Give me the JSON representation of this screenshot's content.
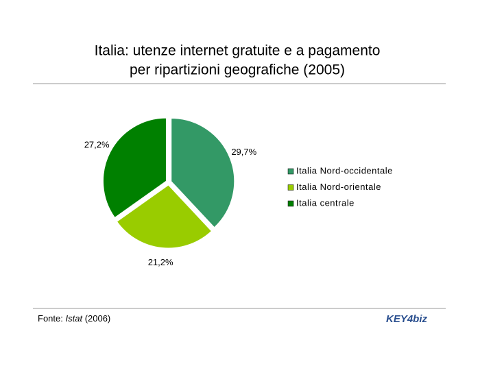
{
  "chart_data": {
    "type": "pie",
    "title": [
      "Italia: utenze internet gratuite e a pagamento",
      "per ripartizioni geografiche (2005)"
    ],
    "categories": [
      "Italia Nord-occidentale",
      "Italia Nord-orientale",
      "Italia centrale"
    ],
    "values": [
      29.7,
      21.2,
      27.2
    ],
    "value_labels": [
      "29,7%",
      "21,2%",
      "27,2%"
    ],
    "colors": [
      "#339966",
      "#99cc00",
      "#008000"
    ],
    "legend": "right"
  },
  "footer": {
    "source_prefix": "Fonte:",
    "source_name": "Istat",
    "source_year": "(2006)",
    "logo": "KEY4biz"
  }
}
